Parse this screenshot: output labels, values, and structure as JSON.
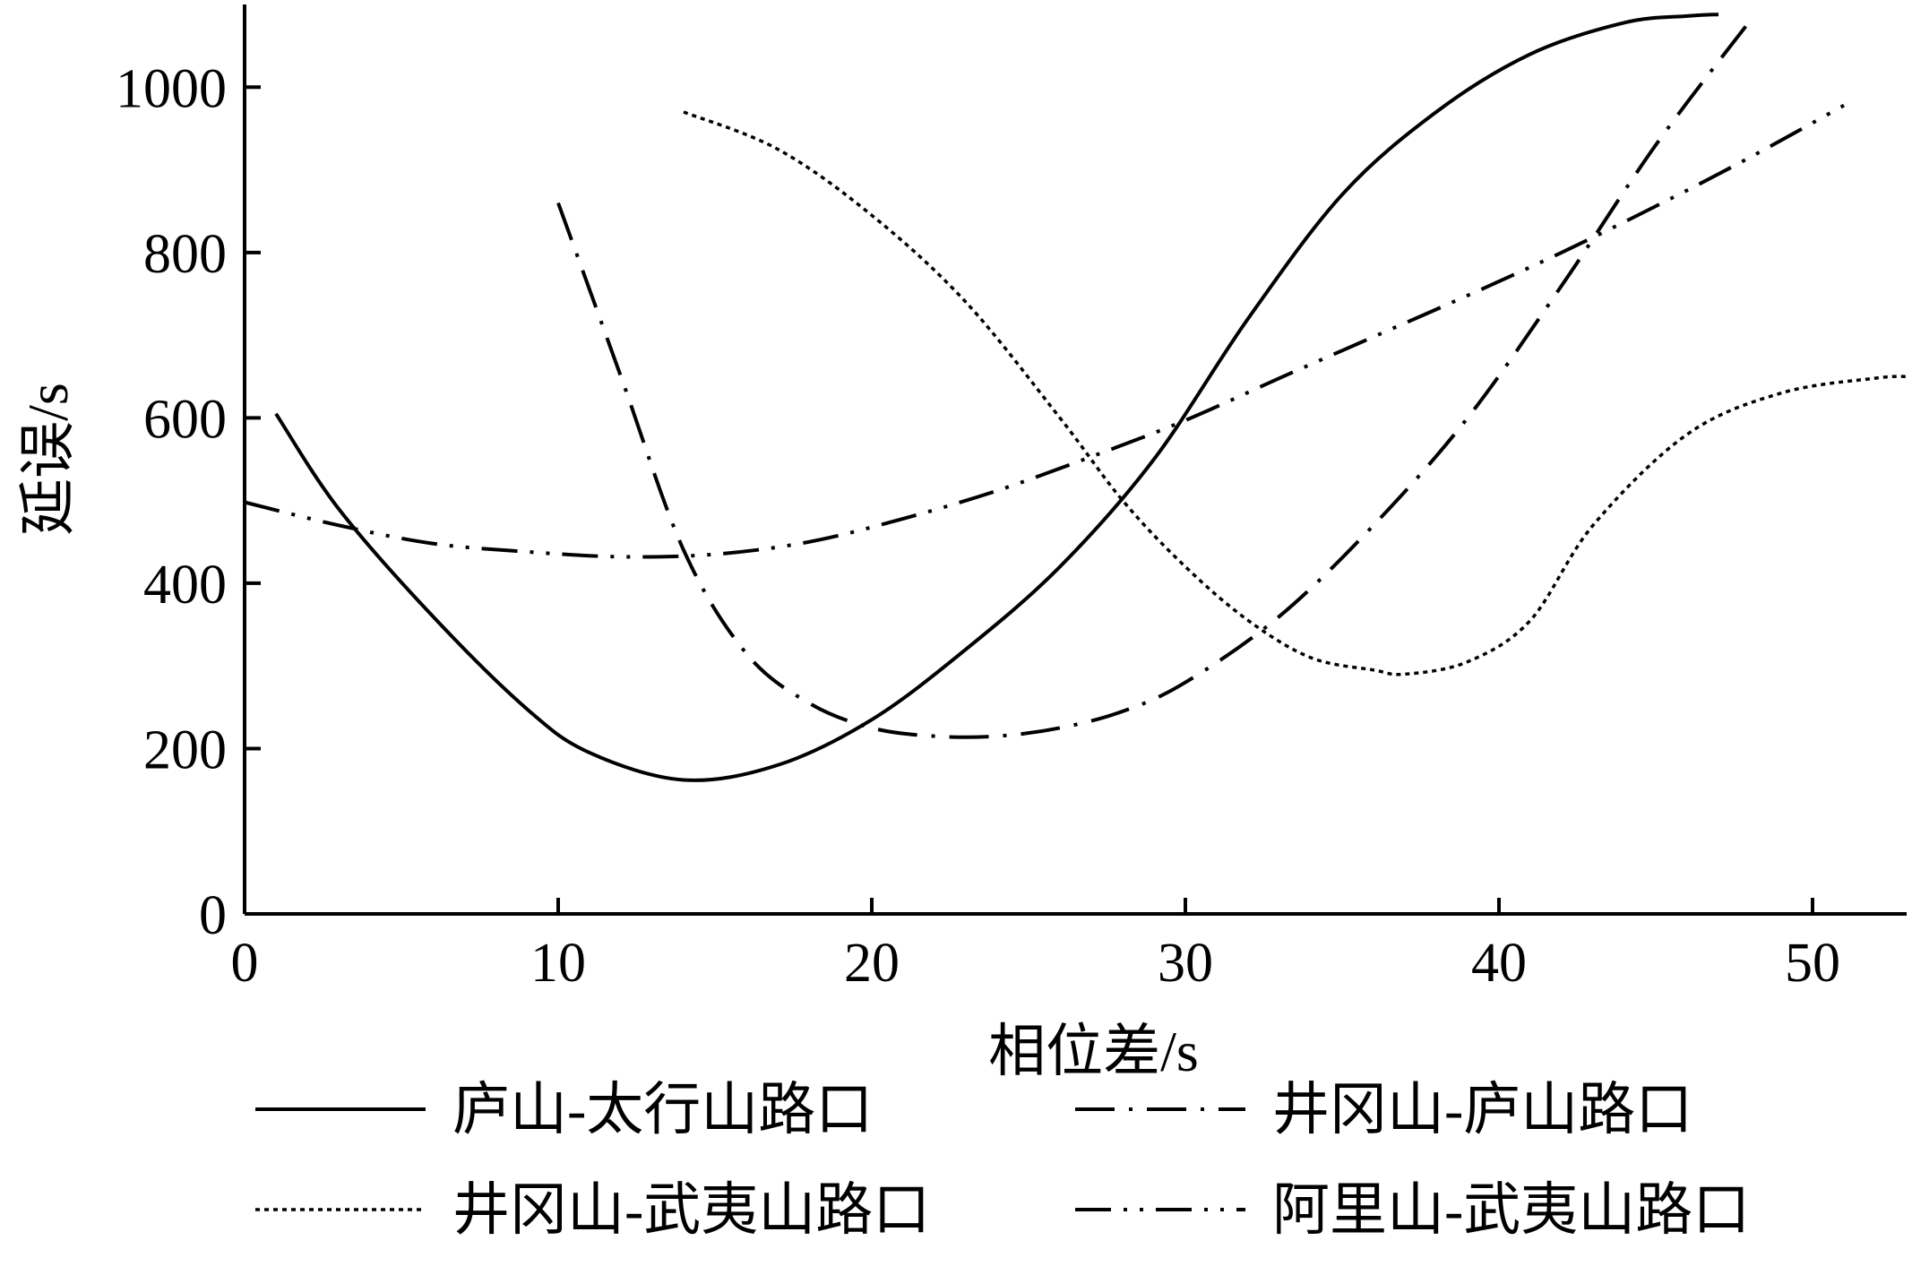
{
  "chart_data": {
    "type": "line",
    "xlabel": "相位差/s",
    "ylabel": "延误/s",
    "xlim": [
      0,
      53
    ],
    "ylim": [
      0,
      1100
    ],
    "x_ticks": [
      0,
      10,
      20,
      30,
      40,
      50
    ],
    "y_ticks": [
      0,
      200,
      400,
      600,
      800,
      1000
    ],
    "grid": false,
    "legend_position": "bottom",
    "series": [
      {
        "name": "庐山-太行山路口",
        "line_style": "solid",
        "x": [
          1,
          3,
          6,
          9,
          11,
          14,
          17,
          20,
          23,
          26,
          29,
          32,
          35,
          38,
          41,
          44,
          46,
          47
        ],
        "y": [
          605,
          490,
          360,
          248,
          195,
          162,
          180,
          235,
          320,
          420,
          550,
          720,
          870,
          970,
          1040,
          1078,
          1086,
          1088
        ]
      },
      {
        "name": "井冈山-庐山路口",
        "line_style": "dash-dot",
        "x": [
          10,
          12,
          14,
          16,
          18,
          20,
          22,
          24,
          26,
          28,
          30,
          33,
          36,
          39,
          42,
          45,
          48
        ],
        "y": [
          860,
          650,
          440,
          315,
          255,
          225,
          215,
          215,
          225,
          245,
          280,
          360,
          470,
          600,
          760,
          930,
          1080
        ]
      },
      {
        "name": "井冈山-武夷山路口",
        "line_style": "dotted",
        "x": [
          14,
          17,
          20,
          23,
          26,
          28,
          30,
          32,
          34,
          36,
          37,
          39,
          41,
          43,
          46,
          49,
          52,
          53
        ],
        "y": [
          970,
          925,
          845,
          740,
          600,
          500,
          420,
          355,
          310,
          295,
          290,
          305,
          355,
          470,
          580,
          630,
          648,
          650
        ]
      },
      {
        "name": "阿里山-武夷山路口",
        "line_style": "dash-dot-dot",
        "x": [
          0,
          3,
          6,
          9,
          12,
          15,
          18,
          21,
          24,
          27,
          30,
          33,
          36,
          39,
          42,
          45,
          48,
          51
        ],
        "y": [
          498,
          470,
          448,
          438,
          432,
          435,
          450,
          478,
          512,
          553,
          597,
          648,
          698,
          748,
          800,
          856,
          915,
          978
        ]
      }
    ]
  }
}
